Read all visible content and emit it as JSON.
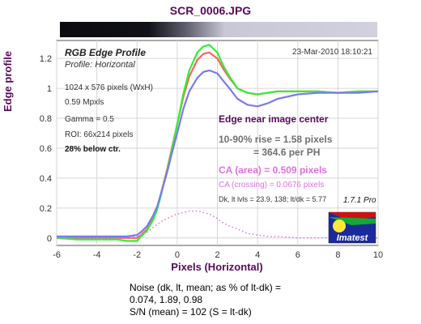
{
  "file_title": "SCR_0006.JPG",
  "panel": {
    "heading": "RGB Edge Profile",
    "subheading": "Profile: Horizontal",
    "date": "23-Mar-2010 18:10:21",
    "info_lines": [
      "1024 x 576 pixels (WxH)",
      "0.59 Mpxls",
      "Gamma = 0.5",
      "ROI: 66x214 pixels"
    ],
    "info_bold": "28% below ctr.",
    "edge_title": "Edge near image center",
    "rise_line1": "10-90% rise = 1.58 pixels",
    "rise_line2": "= 364.6 per PH",
    "ca_area": "CA (area) = 0.509 pixels",
    "ca_crossing": "CA (crossing) = 0.0676 pixels",
    "levels": "Dk, lt lvls = 23.9, 138;  lt/dk = 5.77",
    "version": "1.7.1  Pro",
    "logo_text": "Imatest"
  },
  "noise": {
    "line1": "Noise (dk, lt, mean; as % of lt-dk) =",
    "line2": "0.074,  1.89,  0.98",
    "line3": "S/N (mean) = 102  (S = lt-dk)"
  },
  "colors": {
    "red": "#ff6060",
    "green": "#33ee33",
    "blue": "#7a7aee",
    "ca": "#e070e0",
    "title": "#5a0a5a"
  },
  "chart_data": {
    "type": "line",
    "xlabel": "Pixels (Horizontal)",
    "ylabel": "Edge profile",
    "xlim": [
      -6,
      10
    ],
    "ylim": [
      -0.05,
      1.32
    ],
    "xticks": [
      -6,
      -4,
      -2,
      0,
      2,
      4,
      6,
      8,
      10
    ],
    "yticks": [
      0,
      0.2,
      0.4,
      0.6,
      0.8,
      1,
      1.2
    ],
    "grid": true,
    "x": [
      -6,
      -5,
      -4,
      -3,
      -2.5,
      -2,
      -1.8,
      -1.5,
      -1.2,
      -1,
      -0.8,
      -0.5,
      -0.2,
      0,
      0.3,
      0.6,
      1,
      1.3,
      1.6,
      2,
      2.3,
      2.6,
      3,
      3.5,
      4,
      4.5,
      5,
      6,
      7,
      8,
      9,
      10
    ],
    "series": [
      {
        "color_key": "red",
        "values": [
          0,
          0,
          0,
          0,
          0,
          0,
          0.02,
          0.06,
          0.14,
          0.2,
          0.3,
          0.46,
          0.64,
          0.76,
          0.94,
          1.08,
          1.19,
          1.23,
          1.24,
          1.2,
          1.13,
          1.07,
          1.0,
          0.97,
          0.96,
          0.97,
          0.98,
          0.98,
          0.98,
          0.97,
          0.98,
          0.98
        ]
      },
      {
        "color_key": "green",
        "values": [
          0,
          -0.01,
          -0.01,
          -0.01,
          -0.02,
          -0.02,
          0.01,
          0.05,
          0.12,
          0.19,
          0.29,
          0.45,
          0.63,
          0.76,
          0.96,
          1.12,
          1.24,
          1.28,
          1.29,
          1.24,
          1.15,
          1.08,
          1.0,
          0.97,
          0.96,
          0.97,
          0.98,
          0.98,
          0.98,
          0.97,
          0.98,
          0.98
        ]
      },
      {
        "color_key": "blue",
        "values": [
          0.01,
          0.01,
          0.01,
          0.01,
          0.01,
          0.02,
          0.04,
          0.08,
          0.15,
          0.21,
          0.3,
          0.44,
          0.6,
          0.7,
          0.86,
          0.98,
          1.07,
          1.11,
          1.12,
          1.1,
          1.05,
          1.0,
          0.93,
          0.89,
          0.88,
          0.9,
          0.93,
          0.96,
          0.97,
          0.97,
          0.97,
          0.98
        ]
      },
      {
        "color_key": "ca",
        "style": "dotted",
        "values": [
          0,
          0,
          0,
          0,
          0,
          0.01,
          0.02,
          0.04,
          0.07,
          0.09,
          0.11,
          0.13,
          0.15,
          0.16,
          0.17,
          0.18,
          0.18,
          0.17,
          0.16,
          0.13,
          0.1,
          0.08,
          0.06,
          0.03,
          0.02,
          0.01,
          0.01,
          0,
          0,
          0,
          0,
          0
        ]
      }
    ]
  }
}
